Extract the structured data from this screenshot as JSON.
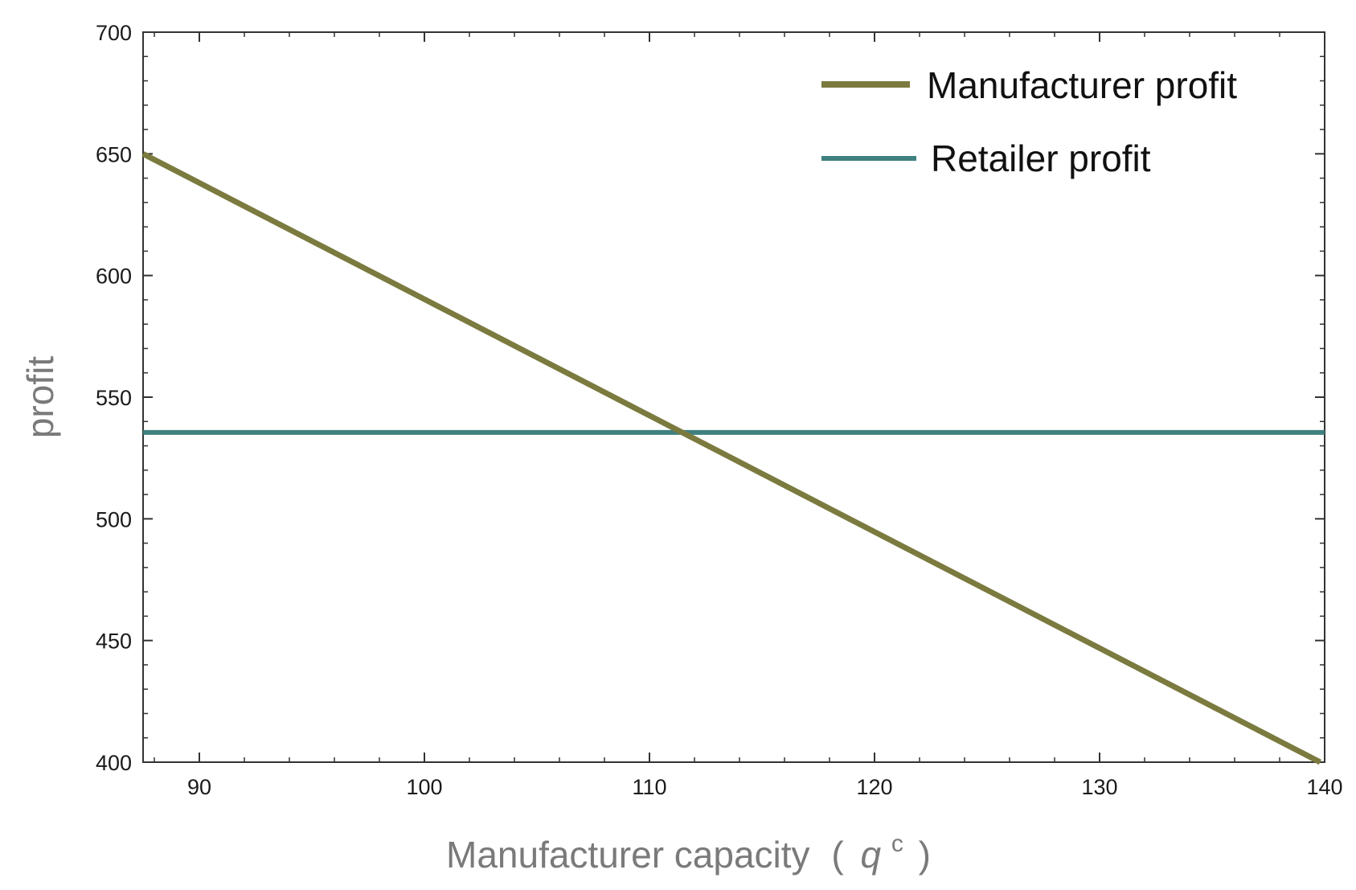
{
  "chart_data": {
    "type": "line",
    "title": "",
    "xlabel": "Manufacturer capacity",
    "xlabel_symbol": "q",
    "xlabel_superscript": "c",
    "ylabel": "profit",
    "xlim": [
      87.5,
      140
    ],
    "ylim": [
      400,
      700
    ],
    "x_ticks": [
      90,
      100,
      110,
      120,
      130,
      140
    ],
    "y_ticks": [
      400,
      450,
      500,
      550,
      600,
      650,
      700
    ],
    "x_tick_labels": [
      "90",
      "100",
      "110",
      "120",
      "130",
      "140"
    ],
    "y_tick_labels": [
      "400",
      "450",
      "500",
      "550",
      "600",
      "650",
      "700"
    ],
    "grid": false,
    "legend_position": "top-right",
    "series": [
      {
        "name": "Manufacturer profit",
        "color": "#7b7a3f",
        "x": [
          87.5,
          139.8
        ],
        "y": [
          650,
          400
        ]
      },
      {
        "name": "Retailer profit",
        "color": "#3f8080",
        "x": [
          87.5,
          140
        ],
        "y": [
          535.5,
          535.5
        ]
      }
    ]
  }
}
